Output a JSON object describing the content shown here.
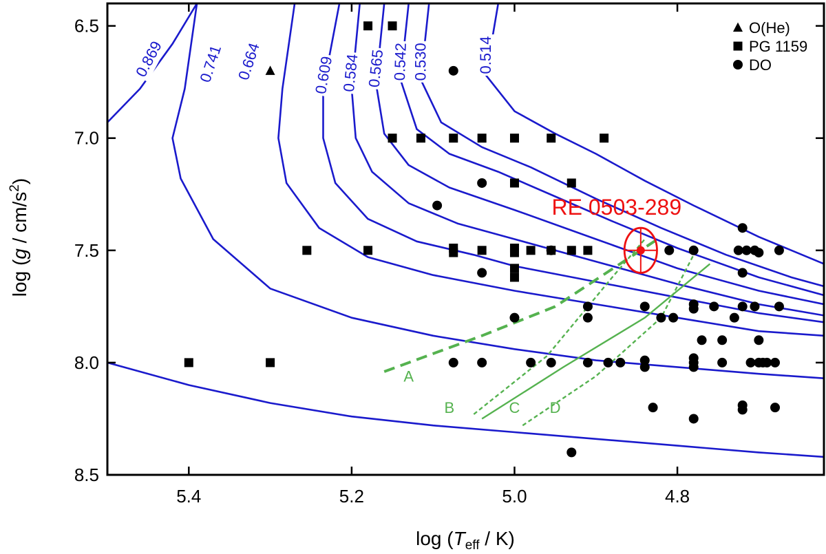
{
  "chart_data": {
    "type": "scatter",
    "xlabel": {
      "prefix": "log (",
      "var": "T",
      "sub": "eff",
      "suffix": " / K)"
    },
    "ylabel": {
      "prefix": "log (",
      "var": "g",
      "suffix": " / cm/s",
      "sup": "2",
      "close": ")"
    },
    "xlim": [
      5.5,
      4.62
    ],
    "ylim": [
      8.5,
      6.4
    ],
    "xticks": [
      {
        "value": 5.4,
        "label": "5.4"
      },
      {
        "value": 5.2,
        "label": "5.2"
      },
      {
        "value": 5.0,
        "label": "5.0"
      },
      {
        "value": 4.8,
        "label": "4.8"
      }
    ],
    "yticks": [
      {
        "value": 6.5,
        "label": "6.5"
      },
      {
        "value": 7.0,
        "label": "7.0"
      },
      {
        "value": 7.5,
        "label": "7.5"
      },
      {
        "value": 8.0,
        "label": "8.0"
      },
      {
        "value": 8.5,
        "label": "8.5"
      }
    ],
    "legend": {
      "position": "top-right",
      "entries": [
        {
          "name": "O(He)",
          "marker": "triangle"
        },
        {
          "name": "PG 1159",
          "marker": "square"
        },
        {
          "name": "DO",
          "marker": "circle"
        }
      ]
    },
    "colors": {
      "tracks": "#1a1acc",
      "lines": "#55b24f",
      "highlight": "#ee1111",
      "points": "#000000"
    },
    "series": [
      {
        "name": "O(He)",
        "marker": "triangle",
        "points": [
          [
            5.3,
            6.7
          ]
        ]
      },
      {
        "name": "PG 1159",
        "marker": "square",
        "points": [
          [
            5.18,
            6.5
          ],
          [
            5.15,
            6.5
          ],
          [
            5.15,
            7.0
          ],
          [
            5.115,
            7.0
          ],
          [
            5.075,
            7.0
          ],
          [
            5.04,
            7.0
          ],
          [
            5.0,
            7.0
          ],
          [
            4.955,
            7.0
          ],
          [
            4.89,
            7.0
          ],
          [
            4.93,
            7.2
          ],
          [
            5.0,
            7.2
          ],
          [
            5.255,
            7.5
          ],
          [
            5.18,
            7.5
          ],
          [
            5.075,
            7.49
          ],
          [
            5.075,
            7.51
          ],
          [
            5.04,
            7.5
          ],
          [
            5.0,
            7.49
          ],
          [
            5.0,
            7.51
          ],
          [
            4.98,
            7.5
          ],
          [
            4.955,
            7.5
          ],
          [
            4.93,
            7.5
          ],
          [
            4.91,
            7.5
          ],
          [
            5.0,
            7.58
          ],
          [
            5.0,
            7.62
          ],
          [
            5.4,
            8.0
          ],
          [
            5.3,
            8.0
          ]
        ]
      },
      {
        "name": "DO",
        "marker": "circle",
        "points": [
          [
            5.075,
            6.7
          ],
          [
            5.04,
            7.2
          ],
          [
            5.095,
            7.3
          ],
          [
            4.81,
            7.5
          ],
          [
            4.78,
            7.5
          ],
          [
            4.725,
            7.5
          ],
          [
            4.715,
            7.5
          ],
          [
            4.705,
            7.5
          ],
          [
            4.7,
            7.51
          ],
          [
            4.675,
            7.5
          ],
          [
            4.72,
            7.4
          ],
          [
            4.72,
            7.6
          ],
          [
            5.04,
            7.6
          ],
          [
            4.955,
            7.5
          ],
          [
            4.91,
            7.75
          ],
          [
            4.84,
            7.75
          ],
          [
            4.78,
            7.74
          ],
          [
            4.78,
            7.76
          ],
          [
            4.755,
            7.75
          ],
          [
            4.72,
            7.75
          ],
          [
            4.705,
            7.75
          ],
          [
            4.675,
            7.75
          ],
          [
            5.0,
            7.8
          ],
          [
            4.91,
            7.8
          ],
          [
            4.82,
            7.8
          ],
          [
            4.805,
            7.8
          ],
          [
            4.73,
            7.8
          ],
          [
            4.77,
            7.9
          ],
          [
            4.745,
            7.9
          ],
          [
            4.7,
            7.9
          ],
          [
            5.075,
            8.0
          ],
          [
            5.04,
            8.0
          ],
          [
            4.98,
            8.0
          ],
          [
            4.955,
            8.0
          ],
          [
            4.91,
            8.0
          ],
          [
            4.885,
            8.0
          ],
          [
            4.87,
            8.0
          ],
          [
            4.84,
            7.99
          ],
          [
            4.84,
            8.02
          ],
          [
            4.78,
            7.98
          ],
          [
            4.78,
            8.0
          ],
          [
            4.78,
            8.02
          ],
          [
            4.745,
            8.0
          ],
          [
            4.71,
            8.0
          ],
          [
            4.7,
            8.0
          ],
          [
            4.695,
            8.0
          ],
          [
            4.69,
            8.0
          ],
          [
            4.68,
            8.0
          ],
          [
            4.83,
            8.2
          ],
          [
            4.72,
            8.19
          ],
          [
            4.72,
            8.21
          ],
          [
            4.68,
            8.2
          ],
          [
            4.78,
            8.25
          ],
          [
            4.93,
            8.4
          ]
        ]
      }
    ],
    "tracks": [
      {
        "label": "0.869",
        "points": [
          [
            5.5,
            6.93
          ],
          [
            5.46,
            6.78
          ],
          [
            5.42,
            6.58
          ],
          [
            5.39,
            6.4
          ]
        ]
      },
      {
        "label": "0.741",
        "points": [
          [
            5.39,
            6.4
          ],
          [
            5.405,
            6.78
          ],
          [
            5.42,
            7.0
          ],
          [
            5.41,
            7.18
          ],
          [
            5.37,
            7.45
          ],
          [
            5.3,
            7.67
          ],
          [
            5.2,
            7.8
          ],
          [
            5.1,
            7.88
          ],
          [
            5.0,
            7.94
          ],
          [
            4.9,
            7.99
          ],
          [
            4.8,
            8.02
          ],
          [
            4.7,
            8.05
          ],
          [
            4.62,
            8.07
          ]
        ]
      },
      {
        "label": "0.664",
        "points": [
          [
            5.27,
            6.4
          ],
          [
            5.285,
            6.78
          ],
          [
            5.29,
            7.0
          ],
          [
            5.28,
            7.2
          ],
          [
            5.24,
            7.4
          ],
          [
            5.18,
            7.53
          ],
          [
            5.1,
            7.61
          ],
          [
            5.0,
            7.68
          ],
          [
            4.9,
            7.74
          ],
          [
            4.8,
            7.8
          ],
          [
            4.7,
            7.86
          ],
          [
            4.62,
            7.88
          ]
        ]
      },
      {
        "label": "0.609",
        "points": [
          [
            5.215,
            6.4
          ],
          [
            5.235,
            6.78
          ],
          [
            5.235,
            7.0
          ],
          [
            5.22,
            7.2
          ],
          [
            5.18,
            7.36
          ],
          [
            5.12,
            7.46
          ],
          [
            5.05,
            7.52
          ],
          [
            5.0,
            7.57
          ],
          [
            4.9,
            7.64
          ],
          [
            4.8,
            7.71
          ],
          [
            4.7,
            7.78
          ],
          [
            4.62,
            7.82
          ]
        ]
      },
      {
        "label": "0.584",
        "points": [
          [
            5.19,
            6.4
          ],
          [
            5.2,
            6.78
          ],
          [
            5.195,
            7.0
          ],
          [
            5.175,
            7.15
          ],
          [
            5.13,
            7.29
          ],
          [
            5.07,
            7.38
          ],
          [
            5.0,
            7.45
          ],
          [
            4.9,
            7.55
          ],
          [
            4.8,
            7.65
          ],
          [
            4.7,
            7.74
          ],
          [
            4.62,
            7.79
          ]
        ]
      },
      {
        "label": "0.565",
        "points": [
          [
            5.16,
            6.4
          ],
          [
            5.17,
            6.76
          ],
          [
            5.16,
            6.98
          ],
          [
            5.13,
            7.12
          ],
          [
            5.08,
            7.22
          ],
          [
            5.0,
            7.32
          ],
          [
            4.9,
            7.45
          ],
          [
            4.8,
            7.58
          ],
          [
            4.7,
            7.68
          ],
          [
            4.62,
            7.74
          ]
        ]
      },
      {
        "label": "0.542",
        "points": [
          [
            5.13,
            6.4
          ],
          [
            5.14,
            6.74
          ],
          [
            5.12,
            6.96
          ],
          [
            5.08,
            7.07
          ],
          [
            5.02,
            7.15
          ],
          [
            4.95,
            7.26
          ],
          [
            4.88,
            7.37
          ],
          [
            4.8,
            7.49
          ],
          [
            4.7,
            7.62
          ],
          [
            4.62,
            7.7
          ]
        ]
      },
      {
        "label": "0.530",
        "points": [
          [
            5.105,
            6.4
          ],
          [
            5.115,
            6.74
          ],
          [
            5.09,
            6.93
          ],
          [
            5.04,
            7.04
          ],
          [
            4.98,
            7.13
          ],
          [
            4.9,
            7.27
          ],
          [
            4.82,
            7.4
          ],
          [
            4.74,
            7.52
          ],
          [
            4.66,
            7.62
          ],
          [
            4.62,
            7.66
          ]
        ]
      },
      {
        "label": "0.514",
        "points": [
          [
            5.02,
            6.4
          ],
          [
            5.035,
            6.72
          ],
          [
            5.0,
            6.88
          ],
          [
            4.95,
            6.98
          ],
          [
            4.9,
            7.07
          ],
          [
            4.84,
            7.19
          ],
          [
            4.78,
            7.3
          ],
          [
            4.7,
            7.44
          ],
          [
            4.62,
            7.56
          ]
        ]
      },
      {
        "label": "",
        "points": [
          [
            5.5,
            8.0
          ],
          [
            5.4,
            8.1
          ],
          [
            5.3,
            8.18
          ],
          [
            5.2,
            8.24
          ],
          [
            5.1,
            8.28
          ],
          [
            5.0,
            8.31
          ],
          [
            4.9,
            8.34
          ],
          [
            4.8,
            8.37
          ],
          [
            4.7,
            8.4
          ],
          [
            4.62,
            8.42
          ]
        ]
      }
    ],
    "track_label_positions": [
      {
        "label": "0.869",
        "x": 5.448,
        "y": 6.65,
        "rot": -62
      },
      {
        "label": "0.741",
        "x": 5.372,
        "y": 6.67,
        "rot": -72
      },
      {
        "label": "0.664",
        "x": 5.325,
        "y": 6.66,
        "rot": -72
      },
      {
        "label": "0.609",
        "x": 5.233,
        "y": 6.72,
        "rot": -80
      },
      {
        "label": "0.584",
        "x": 5.2,
        "y": 6.71,
        "rot": -84
      },
      {
        "label": "0.565",
        "x": 5.169,
        "y": 6.69,
        "rot": -84
      },
      {
        "label": "0.542",
        "x": 5.139,
        "y": 6.66,
        "rot": -88
      },
      {
        "label": "0.530",
        "x": 5.114,
        "y": 6.66,
        "rot": -90
      },
      {
        "label": "0.514",
        "x": 5.034,
        "y": 6.63,
        "rot": -90
      }
    ],
    "lines": [
      {
        "label": "A",
        "style": "dashed-thick",
        "points": [
          [
            5.16,
            8.04
          ],
          [
            5.04,
            7.88
          ],
          [
            4.95,
            7.75
          ],
          [
            4.82,
            7.44
          ]
        ],
        "label_at": [
          5.13,
          8.06
        ]
      },
      {
        "label": "B",
        "style": "dotted",
        "points": [
          [
            5.05,
            8.23
          ],
          [
            4.96,
            7.97
          ],
          [
            4.88,
            7.62
          ],
          [
            4.84,
            7.45
          ]
        ],
        "label_at": [
          5.08,
          8.2
        ]
      },
      {
        "label": "C",
        "style": "solid",
        "points": [
          [
            5.04,
            8.25
          ],
          [
            4.94,
            8.02
          ],
          [
            4.84,
            7.8
          ],
          [
            4.76,
            7.56
          ]
        ],
        "label_at": [
          5.0,
          8.2
        ]
      },
      {
        "label": "D",
        "style": "dotted",
        "points": [
          [
            4.99,
            8.28
          ],
          [
            4.9,
            8.06
          ],
          [
            4.82,
            7.8
          ],
          [
            4.78,
            7.52
          ]
        ],
        "label_at": [
          4.95,
          8.2
        ]
      }
    ],
    "highlight": {
      "label": "RE 0503-289",
      "x": 4.845,
      "y": 7.5,
      "x_err": 0.02,
      "y_err": 0.1
    }
  }
}
